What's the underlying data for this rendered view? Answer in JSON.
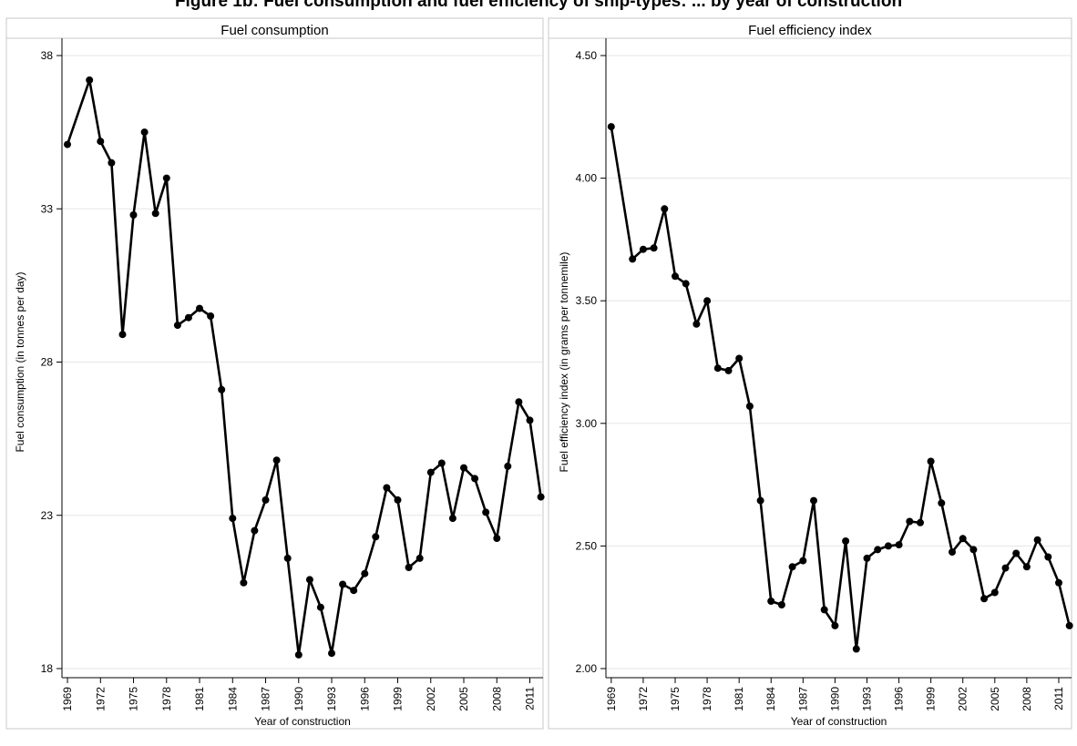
{
  "figure_title": "Figure 1b: Fuel consumption and fuel efficiency of ship-types: ... by year of construction",
  "chart_data": [
    {
      "type": "line",
      "title": "Fuel consumption",
      "xlabel": "Year of construction",
      "ylabel": "Fuel consumption (in tonnes per day)",
      "ylim": [
        18,
        38
      ],
      "yticks": [
        18,
        23,
        28,
        33,
        38
      ],
      "ytick_labels": [
        "18",
        "23",
        "28",
        "33",
        "38"
      ],
      "xticks": [
        1969,
        1972,
        1975,
        1978,
        1981,
        1984,
        1987,
        1990,
        1993,
        1996,
        1999,
        2002,
        2005,
        2008,
        2011
      ],
      "xlim": [
        1968.5,
        2012.2
      ],
      "grid": true,
      "series": [
        {
          "x": [
            1969,
            1971,
            1972,
            1973,
            1974,
            1975,
            1976,
            1977,
            1978,
            1979,
            1980,
            1981,
            1982,
            1983,
            1984,
            1985,
            1986,
            1987,
            1988,
            1989,
            1990,
            1991,
            1992,
            1993,
            1994,
            1995,
            1996,
            1997,
            1998,
            1999,
            2000,
            2001,
            2002,
            2003,
            2004,
            2005,
            2006,
            2007,
            2008,
            2009,
            2010,
            2011,
            2012
          ],
          "values": [
            35.1,
            37.2,
            35.2,
            34.5,
            28.9,
            32.8,
            35.5,
            32.85,
            34.0,
            29.2,
            29.45,
            29.75,
            29.5,
            27.1,
            22.9,
            20.8,
            22.5,
            23.5,
            24.8,
            21.6,
            18.45,
            20.9,
            20.0,
            18.5,
            20.75,
            20.55,
            21.1,
            22.3,
            23.9,
            23.5,
            21.3,
            21.6,
            24.4,
            24.7,
            22.9,
            24.55,
            24.2,
            23.1,
            22.25,
            24.6,
            26.7,
            26.1,
            23.6
          ]
        }
      ]
    },
    {
      "type": "line",
      "title": "Fuel efficiency index",
      "xlabel": "Year of construction",
      "ylabel": "Fuel efficiency index (in grams per tonnemile)",
      "ylim": [
        2.0,
        4.5
      ],
      "yticks": [
        2.0,
        2.5,
        3.0,
        3.5,
        4.0,
        4.5
      ],
      "ytick_labels": [
        "2.00",
        "2.50",
        "3.00",
        "3.50",
        "4.00",
        "4.50"
      ],
      "xticks": [
        1969,
        1972,
        1975,
        1978,
        1981,
        1984,
        1987,
        1990,
        1993,
        1996,
        1999,
        2002,
        2005,
        2008,
        2011
      ],
      "xlim": [
        1968.5,
        2012.2
      ],
      "grid": true,
      "series": [
        {
          "x": [
            1969,
            1971,
            1972,
            1973,
            1974,
            1975,
            1976,
            1977,
            1978,
            1979,
            1980,
            1981,
            1982,
            1983,
            1984,
            1985,
            1986,
            1987,
            1988,
            1989,
            1990,
            1991,
            1992,
            1993,
            1994,
            1995,
            1996,
            1997,
            1998,
            1999,
            2000,
            2001,
            2002,
            2003,
            2004,
            2005,
            2006,
            2007,
            2008,
            2009,
            2010,
            2011,
            2012
          ],
          "values": [
            4.21,
            3.67,
            3.71,
            3.715,
            3.875,
            3.6,
            3.57,
            3.405,
            3.5,
            3.225,
            3.215,
            3.265,
            3.07,
            2.685,
            2.275,
            2.26,
            2.415,
            2.44,
            2.685,
            2.24,
            2.175,
            2.52,
            2.08,
            2.45,
            2.485,
            2.5,
            2.505,
            2.6,
            2.595,
            2.845,
            2.675,
            2.475,
            2.53,
            2.485,
            2.285,
            2.31,
            2.41,
            2.47,
            2.415,
            2.525,
            2.455,
            2.35,
            2.175
          ]
        }
      ]
    }
  ]
}
